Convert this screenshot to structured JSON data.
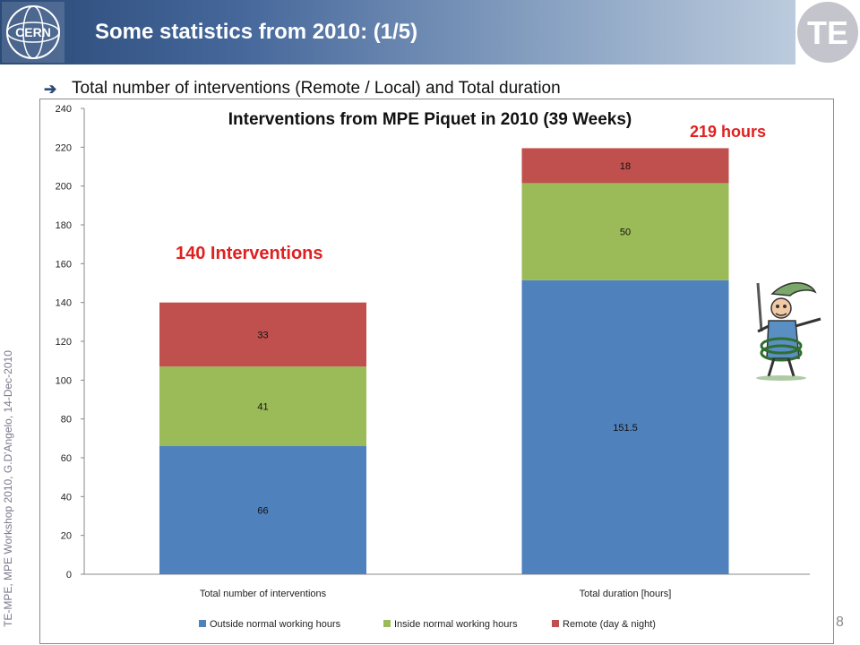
{
  "slide": {
    "title": "Some statistics from 2010: (1/5)",
    "bullet": "Total number of interventions (Remote / Local) and Total duration",
    "sidebar": "TE-MPE, MPE Workshop 2010, G.D'Angelo, 14-Dec-2010",
    "page_number": "8",
    "logo_cern": "CERN",
    "logo_te": "TE"
  },
  "annotations": {
    "interventions": "140 Interventions",
    "hours": "219 hours"
  },
  "colors": {
    "outside": "#4f81bd",
    "inside": "#9bbb59",
    "remote": "#c0504d",
    "annotation": "#e02020"
  },
  "chart_data": {
    "type": "bar",
    "stacked": true,
    "title": "Interventions from MPE Piquet in 2010 (39 Weeks)",
    "categories": [
      "Total number of interventions",
      "Total duration [hours]"
    ],
    "series": [
      {
        "name": "Outside normal working hours",
        "values": [
          66,
          151.5
        ],
        "labels": [
          "66",
          "151.5"
        ]
      },
      {
        "name": "Inside normal working hours",
        "values": [
          41,
          50
        ],
        "labels": [
          "41",
          "50"
        ]
      },
      {
        "name": "Remote (day & night)",
        "values": [
          33,
          18
        ],
        "labels": [
          "33",
          "18"
        ]
      }
    ],
    "ylim": [
      0,
      240
    ],
    "yticks": [
      0,
      20,
      40,
      60,
      80,
      100,
      120,
      140,
      160,
      180,
      200,
      220,
      240
    ],
    "grid": false,
    "legend": "bottom"
  }
}
